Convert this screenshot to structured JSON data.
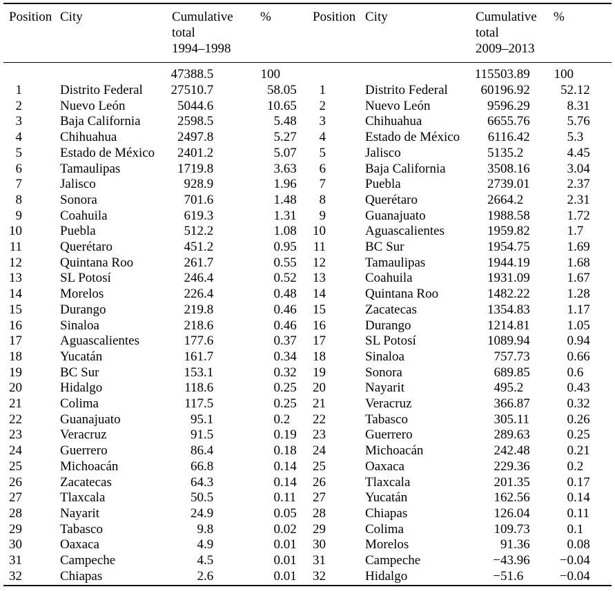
{
  "table": {
    "header": {
      "left": {
        "position": "Position",
        "city": "City",
        "cumulative": "Cumulative\ntotal\n1994–1998",
        "percent": "%"
      },
      "right": {
        "position": "Position",
        "city": "City",
        "cumulative": "Cumulative\ntotal\n2009–2013",
        "percent": "%"
      }
    },
    "totals_row": [
      "",
      "",
      "47388.5",
      "100",
      "",
      "",
      "115503.89",
      "100"
    ],
    "rows": [
      [
        "1",
        "Distrito Federal",
        "27510.7",
        "58.05",
        "1",
        "Distrito Federal",
        "60196.92",
        "52.12"
      ],
      [
        "2",
        "Nuevo León",
        "5044.6",
        "10.65",
        "2",
        "Nuevo León",
        "9596.29",
        "8.31"
      ],
      [
        "3",
        "Baja California",
        "2598.5",
        "5.48",
        "3",
        "Chihuahua",
        "6655.76",
        "5.76"
      ],
      [
        "4",
        "Chihuahua",
        "2497.8",
        "5.27",
        "4",
        "Estado de México",
        "6116.42",
        "5.3"
      ],
      [
        "5",
        "Estado de México",
        "2401.2",
        "5.07",
        "5",
        "Jalisco",
        "5135.2",
        "4.45"
      ],
      [
        "6",
        "Tamaulipas",
        "1719.8",
        "3.63",
        "6",
        "Baja California",
        "3508.16",
        "3.04"
      ],
      [
        "7",
        "Jalisco",
        "928.9",
        "1.96",
        "7",
        "Puebla",
        "2739.01",
        "2.37"
      ],
      [
        "8",
        "Sonora",
        "701.6",
        "1.48",
        "8",
        "Querétaro",
        "2664.2",
        "2.31"
      ],
      [
        "9",
        "Coahuila",
        "619.3",
        "1.31",
        "9",
        "Guanajuato",
        "1988.58",
        "1.72"
      ],
      [
        "10",
        "Puebla",
        "512.2",
        "1.08",
        "10",
        "Aguascalientes",
        "1959.82",
        "1.7"
      ],
      [
        "11",
        "Querétaro",
        "451.2",
        "0.95",
        "11",
        "BC Sur",
        "1954.75",
        "1.69"
      ],
      [
        "12",
        "Quintana Roo",
        "261.7",
        "0.55",
        "12",
        "Tamaulipas",
        "1944.19",
        "1.68"
      ],
      [
        "13",
        "SL Potosí",
        "246.4",
        "0.52",
        "13",
        "Coahuila",
        "1931.09",
        "1.67"
      ],
      [
        "14",
        "Morelos",
        "226.4",
        "0.48",
        "14",
        "Quintana Roo",
        "1482.22",
        "1.28"
      ],
      [
        "15",
        "Durango",
        "219.8",
        "0.46",
        "15",
        "Zacatecas",
        "1354.83",
        "1.17"
      ],
      [
        "16",
        "Sinaloa",
        "218.6",
        "0.46",
        "16",
        "Durango",
        "1214.81",
        "1.05"
      ],
      [
        "17",
        "Aguascalientes",
        "177.6",
        "0.37",
        "17",
        "SL Potosí",
        "1089.94",
        "0.94"
      ],
      [
        "18",
        "Yucatán",
        "161.7",
        "0.34",
        "18",
        "Sinaloa",
        "757.73",
        "0.66"
      ],
      [
        "19",
        "BC Sur",
        "153.1",
        "0.32",
        "19",
        "Sonora",
        "689.85",
        "0.6"
      ],
      [
        "20",
        "Hidalgo",
        "118.6",
        "0.25",
        "20",
        "Nayarit",
        "495.2",
        "0.43"
      ],
      [
        "21",
        "Colima",
        "117.5",
        "0.25",
        "21",
        "Veracruz",
        "366.87",
        "0.32"
      ],
      [
        "22",
        "Guanajuato",
        "95.1",
        "0.2",
        "22",
        "Tabasco",
        "305.11",
        "0.26"
      ],
      [
        "23",
        "Veracruz",
        "91.5",
        "0.19",
        "23",
        "Guerrero",
        "289.63",
        "0.25"
      ],
      [
        "24",
        "Guerrero",
        "86.4",
        "0.18",
        "24",
        "Michoacán",
        "242.48",
        "0.21"
      ],
      [
        "25",
        "Michoacán",
        "66.8",
        "0.14",
        "25",
        "Oaxaca",
        "229.36",
        "0.2"
      ],
      [
        "26",
        "Zacatecas",
        "64.3",
        "0.14",
        "26",
        "Tlaxcala",
        "201.35",
        "0.17"
      ],
      [
        "27",
        "Tlaxcala",
        "50.5",
        "0.11",
        "27",
        "Yucatán",
        "162.56",
        "0.14"
      ],
      [
        "28",
        "Nayarit",
        "24.9",
        "0.05",
        "28",
        "Chiapas",
        "126.04",
        "0.11"
      ],
      [
        "29",
        "Tabasco",
        "9.8",
        "0.02",
        "29",
        "Colima",
        "109.73",
        "0.1"
      ],
      [
        "30",
        "Oaxaca",
        "4.9",
        "0.01",
        "30",
        "Morelos",
        "91.36",
        "0.08"
      ],
      [
        "31",
        "Campeche",
        "4.5",
        "0.01",
        "31",
        "Campeche",
        "−43.96",
        "−0.04"
      ],
      [
        "32",
        "Chiapas",
        "2.6",
        "0.01",
        "32",
        "Hidalgo",
        "−51.6",
        "−0.04"
      ]
    ],
    "colors": {
      "text": "#000000",
      "rule": "#000000",
      "background": "#ffffff"
    }
  }
}
